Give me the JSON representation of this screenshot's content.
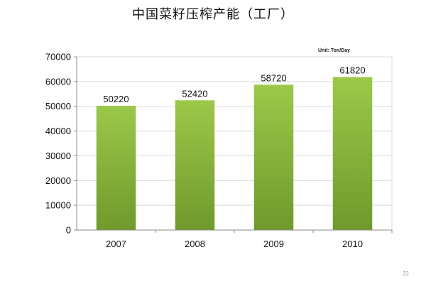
{
  "slide": {
    "title": "中国菜籽压榨产能（工厂）",
    "page_number": "22"
  },
  "colors": {
    "bar_top": "#9cc84a",
    "bar_bottom": "#6f9a2c",
    "grid": "#d9d9d9",
    "axis": "#8c8c8c"
  },
  "chart_data": {
    "type": "bar",
    "title": "",
    "unit_label": "Unit: Ton/Day",
    "xlabel": "",
    "ylabel": "",
    "categories": [
      "2007",
      "2008",
      "2009",
      "2010"
    ],
    "values": [
      50220,
      52420,
      58720,
      61820
    ],
    "data_labels": [
      "50220",
      "52420",
      "58720",
      "61820"
    ],
    "ylim": [
      0,
      70000
    ],
    "yticks": [
      0,
      10000,
      20000,
      30000,
      40000,
      50000,
      60000,
      70000
    ],
    "ytick_labels": [
      "0",
      "10000",
      "20000",
      "30000",
      "40000",
      "50000",
      "60000",
      "70000"
    ],
    "grid": true,
    "legend": "none"
  }
}
